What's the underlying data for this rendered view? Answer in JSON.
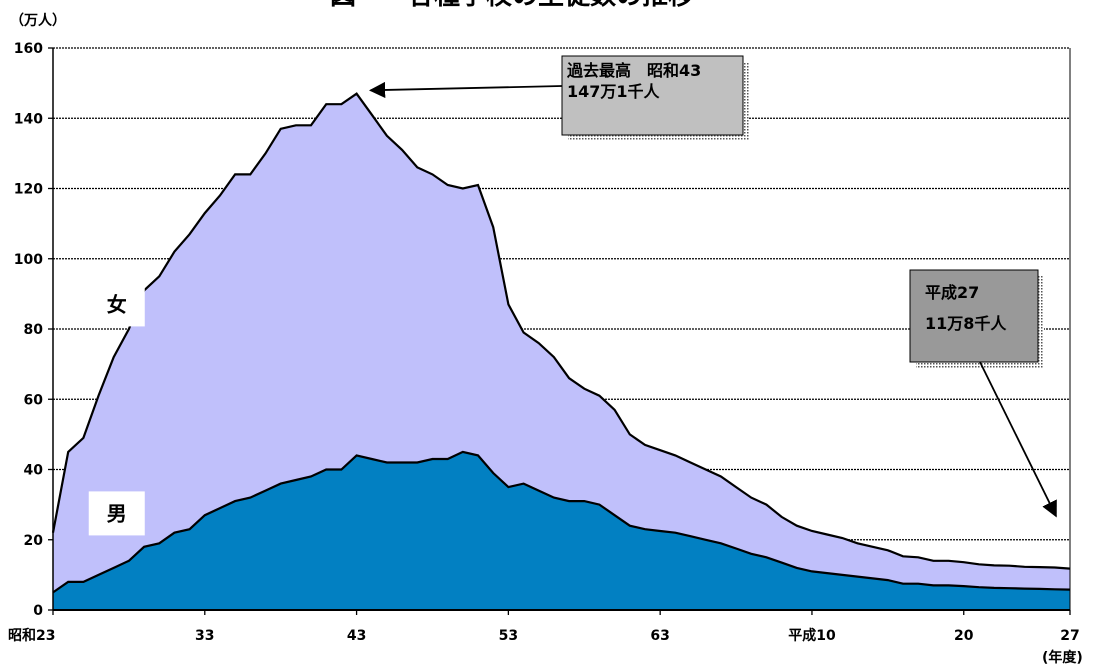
{
  "colors": {
    "female_fill": "#c0c0fb",
    "male_fill": "#0280c2",
    "outline": "#000000",
    "callout_light": "#c0c0c0",
    "callout_dark": "#999999"
  },
  "chart_data": {
    "type": "area",
    "stacked": true,
    "title": "図　　各種学校の生徒数の推移",
    "ylabel": "（万人）",
    "xlabel": "(年度)",
    "ylim": [
      0,
      160
    ],
    "yticks": [
      0,
      20,
      40,
      60,
      80,
      100,
      120,
      140,
      160
    ],
    "grid": true,
    "x_years": [
      1948,
      1949,
      1950,
      1951,
      1952,
      1953,
      1954,
      1955,
      1956,
      1957,
      1958,
      1959,
      1960,
      1961,
      1962,
      1963,
      1964,
      1965,
      1966,
      1967,
      1968,
      1969,
      1970,
      1971,
      1972,
      1973,
      1974,
      1975,
      1976,
      1977,
      1978,
      1979,
      1980,
      1981,
      1982,
      1983,
      1984,
      1985,
      1986,
      1987,
      1988,
      1989,
      1990,
      1991,
      1992,
      1993,
      1994,
      1995,
      1996,
      1997,
      1998,
      1999,
      2000,
      2001,
      2002,
      2003,
      2004,
      2005,
      2006,
      2007,
      2008,
      2009,
      2010,
      2011,
      2012,
      2013,
      2014,
      2015
    ],
    "x_ticks": [
      {
        "year": 1948,
        "label": "昭和23"
      },
      {
        "year": 1958,
        "label": "33"
      },
      {
        "year": 1968,
        "label": "43"
      },
      {
        "year": 1978,
        "label": "53"
      },
      {
        "year": 1988,
        "label": "63"
      },
      {
        "year": 1998,
        "label": "平成10"
      },
      {
        "year": 2008,
        "label": "20"
      },
      {
        "year": 2015,
        "label": "27"
      }
    ],
    "series": [
      {
        "name": "男",
        "values": [
          5,
          8,
          8,
          10,
          12,
          14,
          18,
          19,
          22,
          23,
          27,
          29,
          31,
          32,
          34,
          36,
          37,
          38,
          40,
          40,
          44,
          43,
          42,
          42,
          42,
          43,
          43,
          45,
          44,
          39,
          35,
          36,
          34,
          32,
          31,
          31,
          30,
          27,
          24,
          23,
          22.5,
          22,
          21,
          20,
          19,
          17.5,
          16,
          15,
          13.5,
          12,
          11,
          10.5,
          10,
          9.5,
          9,
          8.5,
          7.5,
          7.5,
          7,
          7,
          6.8,
          6.5,
          6.3,
          6.2,
          6.1,
          6,
          5.9,
          5.8
        ]
      },
      {
        "name": "女",
        "values": [
          17,
          37,
          41,
          51,
          60,
          66,
          73,
          76,
          80,
          84,
          86,
          89,
          93,
          92,
          96,
          101,
          101,
          100,
          104,
          104,
          103,
          98,
          93,
          89,
          84,
          81,
          78,
          75,
          77,
          70,
          52,
          43,
          42,
          40,
          35,
          32,
          31,
          30,
          26,
          24,
          23,
          22,
          21,
          20,
          19,
          17.5,
          16,
          15,
          13,
          12,
          11.5,
          11,
          10.5,
          9.5,
          9,
          8.5,
          7.8,
          7.5,
          7,
          7,
          6.8,
          6.5,
          6.4,
          6.4,
          6.2,
          6.2,
          6.2,
          6.0
        ]
      }
    ],
    "labels": {
      "female": "女",
      "male": "男"
    },
    "annotations": [
      {
        "id": "peak",
        "line1": "過去最高　昭和43",
        "line2": "147万1千人",
        "points_to_year": 1968,
        "points_to_value": 147.1
      },
      {
        "id": "latest",
        "line1": "平成27",
        "line2": "11万8千人",
        "points_to_year": 2015,
        "points_to_value": 11.8
      }
    ]
  }
}
